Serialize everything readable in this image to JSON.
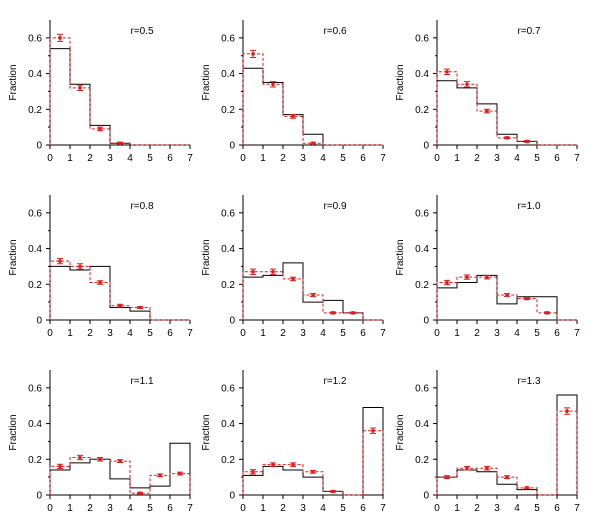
{
  "colors": {
    "model": "#000000",
    "data": "#e41a1c"
  },
  "chart_data": [
    {
      "type": "histogram",
      "title": "r=0.5",
      "ylabel": "Fraction",
      "xlim": [
        0,
        7
      ],
      "ylim": [
        0,
        0.7
      ],
      "xticks": [
        "0",
        "1",
        "2",
        "3",
        "4",
        "5",
        "6",
        "7"
      ],
      "yticks": [
        "0",
        "0.2",
        "0.4",
        "0.6"
      ],
      "series": [
        {
          "values": [
            0.54,
            0.34,
            0.11,
            0.01,
            0,
            0,
            0
          ]
        },
        {
          "values": [
            0.6,
            0.32,
            0.09,
            0.01,
            0,
            0,
            0
          ],
          "errors": [
            0.02,
            0.015,
            0.01,
            0.005,
            0,
            0,
            0
          ]
        }
      ]
    },
    {
      "type": "histogram",
      "title": "r=0.6",
      "ylabel": "Fraction",
      "xlim": [
        0,
        7
      ],
      "ylim": [
        0,
        0.7
      ],
      "xticks": [
        "0",
        "1",
        "2",
        "3",
        "4",
        "5",
        "6",
        "7"
      ],
      "yticks": [
        "0",
        "0.2",
        "0.4",
        "0.6"
      ],
      "series": [
        {
          "values": [
            0.43,
            0.35,
            0.17,
            0.06,
            0,
            0,
            0
          ]
        },
        {
          "values": [
            0.51,
            0.34,
            0.16,
            0.01,
            0,
            0,
            0
          ],
          "errors": [
            0.02,
            0.015,
            0.01,
            0.005,
            0,
            0,
            0
          ]
        }
      ]
    },
    {
      "type": "histogram",
      "title": "r=0.7",
      "ylabel": "Fraction",
      "xlim": [
        0,
        7
      ],
      "ylim": [
        0,
        0.7
      ],
      "xticks": [
        "0",
        "1",
        "2",
        "3",
        "4",
        "5",
        "6",
        "7"
      ],
      "yticks": [
        "0",
        "0.2",
        "0.4",
        "0.6"
      ],
      "series": [
        {
          "values": [
            0.36,
            0.32,
            0.23,
            0.06,
            0.02,
            0,
            0
          ]
        },
        {
          "values": [
            0.41,
            0.34,
            0.19,
            0.04,
            0.02,
            0,
            0
          ],
          "errors": [
            0.015,
            0.015,
            0.01,
            0.005,
            0.005,
            0,
            0
          ]
        }
      ]
    },
    {
      "type": "histogram",
      "title": "r=0.8",
      "ylabel": "Fraction",
      "xlim": [
        0,
        7
      ],
      "ylim": [
        0,
        0.7
      ],
      "xticks": [
        "0",
        "1",
        "2",
        "3",
        "4",
        "5",
        "6",
        "7"
      ],
      "yticks": [
        "0",
        "0.2",
        "0.4",
        "0.6"
      ],
      "series": [
        {
          "values": [
            0.3,
            0.28,
            0.3,
            0.07,
            0.05,
            0,
            0
          ]
        },
        {
          "values": [
            0.33,
            0.3,
            0.21,
            0.08,
            0.07,
            0,
            0
          ],
          "errors": [
            0.015,
            0.015,
            0.01,
            0.008,
            0.005,
            0,
            0
          ]
        }
      ]
    },
    {
      "type": "histogram",
      "title": "r=0.9",
      "ylabel": "Fraction",
      "xlim": [
        0,
        7
      ],
      "ylim": [
        0,
        0.7
      ],
      "xticks": [
        "0",
        "1",
        "2",
        "3",
        "4",
        "5",
        "6",
        "7"
      ],
      "yticks": [
        "0",
        "0.2",
        "0.4",
        "0.6"
      ],
      "series": [
        {
          "values": [
            0.24,
            0.25,
            0.32,
            0.1,
            0.11,
            0.04,
            0
          ]
        },
        {
          "values": [
            0.27,
            0.27,
            0.23,
            0.14,
            0.04,
            0.04,
            0
          ],
          "errors": [
            0.015,
            0.015,
            0.01,
            0.008,
            0.005,
            0.005,
            0
          ]
        }
      ]
    },
    {
      "type": "histogram",
      "title": "r=1.0",
      "ylabel": "Fraction",
      "xlim": [
        0,
        7
      ],
      "ylim": [
        0,
        0.7
      ],
      "xticks": [
        "0",
        "1",
        "2",
        "3",
        "4",
        "5",
        "6",
        "7"
      ],
      "yticks": [
        "0",
        "0.2",
        "0.4",
        "0.6"
      ],
      "series": [
        {
          "values": [
            0.18,
            0.21,
            0.25,
            0.09,
            0.13,
            0.13,
            0
          ]
        },
        {
          "values": [
            0.21,
            0.24,
            0.24,
            0.14,
            0.12,
            0.04,
            0
          ],
          "errors": [
            0.012,
            0.012,
            0.01,
            0.008,
            0.006,
            0.005,
            0
          ]
        }
      ]
    },
    {
      "type": "histogram",
      "title": "r=1.1",
      "ylabel": "Fraction",
      "xlim": [
        0,
        7
      ],
      "ylim": [
        0,
        0.7
      ],
      "xticks": [
        "0",
        "1",
        "2",
        "3",
        "4",
        "5",
        "6",
        "7"
      ],
      "yticks": [
        "0",
        "0.2",
        "0.4",
        "0.6"
      ],
      "series": [
        {
          "values": [
            0.14,
            0.18,
            0.2,
            0.09,
            0.04,
            0.05,
            0.29
          ]
        },
        {
          "values": [
            0.16,
            0.21,
            0.2,
            0.19,
            0.01,
            0.11,
            0.12
          ],
          "errors": [
            0.012,
            0.012,
            0.01,
            0.008,
            0.005,
            0.008,
            0.008
          ]
        }
      ]
    },
    {
      "type": "histogram",
      "title": "r=1.2",
      "ylabel": "Fraction",
      "xlim": [
        0,
        7
      ],
      "ylim": [
        0,
        0.7
      ],
      "xticks": [
        "0",
        "1",
        "2",
        "3",
        "4",
        "5",
        "6",
        "7"
      ],
      "yticks": [
        "0",
        "0.2",
        "0.4",
        "0.6"
      ],
      "series": [
        {
          "values": [
            0.11,
            0.16,
            0.14,
            0.1,
            0.02,
            0,
            0.49
          ]
        },
        {
          "values": [
            0.13,
            0.17,
            0.17,
            0.13,
            0.02,
            0,
            0.36
          ],
          "errors": [
            0.012,
            0.01,
            0.01,
            0.008,
            0.004,
            0,
            0.015
          ]
        }
      ]
    },
    {
      "type": "histogram",
      "title": "r=1.3",
      "ylabel": "Fraction",
      "xlim": [
        0,
        7
      ],
      "ylim": [
        0,
        0.7
      ],
      "xticks": [
        "0",
        "1",
        "2",
        "3",
        "4",
        "5",
        "6",
        "7"
      ],
      "yticks": [
        "0",
        "0.2",
        "0.4",
        "0.6"
      ],
      "series": [
        {
          "values": [
            0.1,
            0.14,
            0.13,
            0.06,
            0.03,
            0,
            0.56
          ]
        },
        {
          "values": [
            0.1,
            0.15,
            0.15,
            0.1,
            0.04,
            0,
            0.47
          ],
          "errors": [
            0.008,
            0.01,
            0.01,
            0.008,
            0.005,
            0,
            0.018
          ]
        }
      ]
    }
  ]
}
